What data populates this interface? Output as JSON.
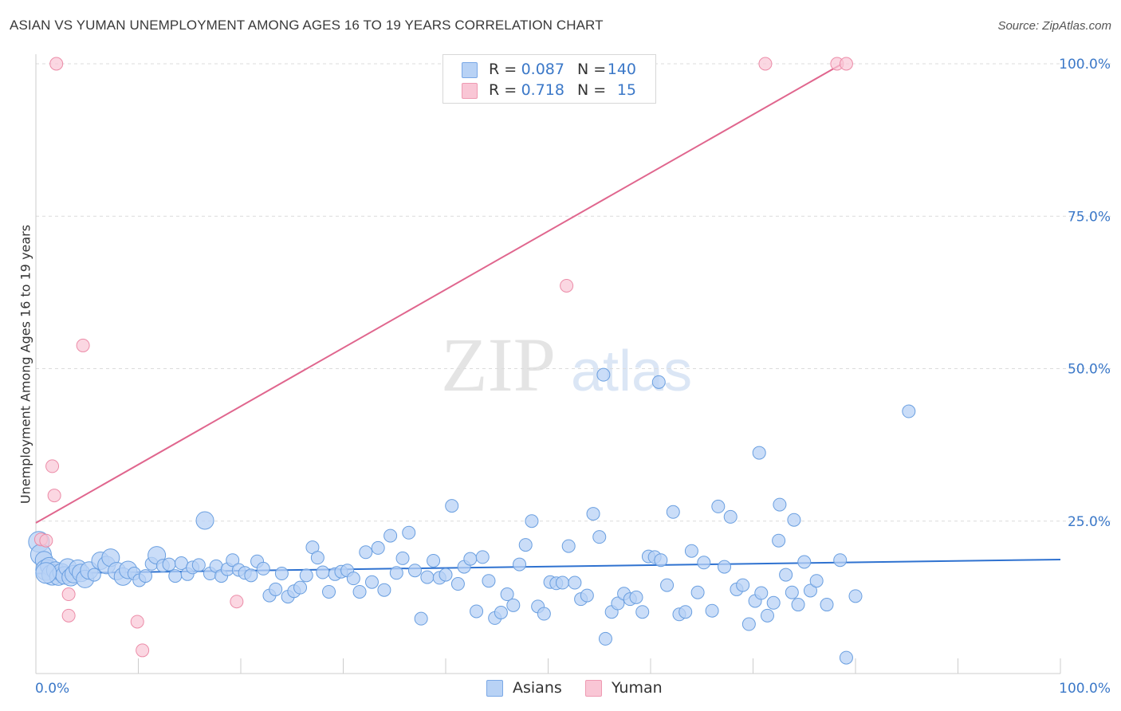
{
  "title": "ASIAN VS YUMAN UNEMPLOYMENT AMONG AGES 16 TO 19 YEARS CORRELATION CHART",
  "source": "Source: ZipAtlas.com",
  "watermark": {
    "zip": "ZIP",
    "atlas": "atlas"
  },
  "colors": {
    "blue_fill": "#b8d2f5",
    "blue_stroke": "#6a9fe0",
    "blue_line": "#2f72d0",
    "pink_fill": "#f9c6d5",
    "pink_stroke": "#ec8ca8",
    "pink_line": "#e0668e",
    "axis_text": "#3b78c8",
    "grid": "#dcdcdc"
  },
  "legend": {
    "r_label": "R =",
    "n_label": "N =",
    "rows": [
      {
        "series": "Asians",
        "r": "0.087",
        "n": "140",
        "color": "blue"
      },
      {
        "series": "Yuman",
        "r": "0.718",
        "n": "15",
        "color": "pink"
      }
    ]
  },
  "bottom_legend": [
    {
      "label": "Asians",
      "color": "blue"
    },
    {
      "label": "Yuman",
      "color": "pink"
    }
  ],
  "chart_data": {
    "type": "scatter",
    "title": "ASIAN VS YUMAN UNEMPLOYMENT AMONG AGES 16 TO 19 YEARS CORRELATION CHART",
    "xlabel": "",
    "ylabel": "Unemployment Among Ages 16 to 19 years",
    "xlim": [
      0,
      100
    ],
    "ylim": [
      0,
      100
    ],
    "x_tick_labels": [
      "0.0%",
      "100.0%"
    ],
    "y_ticks": [
      {
        "value": 25,
        "label": "25.0%"
      },
      {
        "value": 50,
        "label": "50.0%"
      },
      {
        "value": 75,
        "label": "75.0%"
      },
      {
        "value": 100,
        "label": "100.0%"
      }
    ],
    "grid": true,
    "legend_position": "top-center",
    "series": [
      {
        "name": "Asians",
        "color": "blue",
        "trend": {
          "x": [
            0,
            100
          ],
          "y": [
            16.4,
            18.7
          ]
        },
        "points": [
          [
            0.3,
            21.6,
            3
          ],
          [
            0.5,
            19.5,
            3
          ],
          [
            0.8,
            18.6,
            2
          ],
          [
            1.0,
            17.0,
            3
          ],
          [
            1.3,
            17.6,
            2
          ],
          [
            1.6,
            16.2,
            3
          ],
          [
            1.9,
            16.9,
            2
          ],
          [
            2.2,
            15.9,
            2
          ],
          [
            2.5,
            16.6,
            2
          ],
          [
            2.8,
            16.1,
            2
          ],
          [
            3.1,
            17.4,
            2
          ],
          [
            3.4,
            15.8,
            2
          ],
          [
            3.7,
            16.3,
            2
          ],
          [
            4.1,
            17.2,
            2
          ],
          [
            4.4,
            16.5,
            2
          ],
          [
            4.8,
            15.5,
            2
          ],
          [
            5.2,
            16.9,
            2
          ],
          [
            5.7,
            16.2,
            1
          ],
          [
            6.3,
            18.5,
            2
          ],
          [
            6.9,
            17.8,
            2
          ],
          [
            7.3,
            19.0,
            2
          ],
          [
            7.9,
            16.8,
            2
          ],
          [
            8.5,
            15.9,
            2
          ],
          [
            9.0,
            17.0,
            2
          ],
          [
            9.6,
            16.4,
            1
          ],
          [
            10.1,
            15.3,
            1
          ],
          [
            10.7,
            16.0,
            1
          ],
          [
            11.3,
            18.0,
            1
          ],
          [
            11.8,
            19.4,
            2
          ],
          [
            12.4,
            17.7,
            1
          ],
          [
            13.0,
            17.9,
            1
          ],
          [
            13.6,
            16.0,
            1
          ],
          [
            14.2,
            18.1,
            1
          ],
          [
            14.8,
            16.3,
            1
          ],
          [
            15.3,
            17.4,
            1
          ],
          [
            15.9,
            17.8,
            1
          ],
          [
            16.5,
            25.1,
            2
          ],
          [
            17.0,
            16.4,
            1
          ],
          [
            17.6,
            17.6,
            1
          ],
          [
            18.1,
            16.0,
            1
          ],
          [
            18.7,
            17.1,
            1
          ],
          [
            19.2,
            18.6,
            1
          ],
          [
            19.8,
            17.0,
            1
          ],
          [
            20.4,
            16.5,
            1
          ],
          [
            21.0,
            16.1,
            1
          ],
          [
            21.6,
            18.4,
            1
          ],
          [
            22.2,
            17.2,
            1
          ],
          [
            22.8,
            12.8,
            1
          ],
          [
            23.4,
            13.8,
            1
          ],
          [
            24.0,
            16.4,
            1
          ],
          [
            24.6,
            12.6,
            1
          ],
          [
            25.2,
            13.5,
            1
          ],
          [
            25.8,
            14.1,
            1
          ],
          [
            26.4,
            16.1,
            1
          ],
          [
            27.0,
            20.7,
            1
          ],
          [
            27.5,
            19.0,
            1
          ],
          [
            28.0,
            16.6,
            1
          ],
          [
            28.6,
            13.4,
            1
          ],
          [
            29.2,
            16.3,
            1
          ],
          [
            29.8,
            16.7,
            1
          ],
          [
            30.4,
            16.9,
            1
          ],
          [
            31.0,
            15.6,
            1
          ],
          [
            31.6,
            13.4,
            1
          ],
          [
            32.2,
            19.9,
            1
          ],
          [
            32.8,
            15.0,
            1
          ],
          [
            33.4,
            20.6,
            1
          ],
          [
            34.0,
            13.7,
            1
          ],
          [
            34.6,
            22.6,
            1
          ],
          [
            35.2,
            16.5,
            1
          ],
          [
            35.8,
            18.9,
            1
          ],
          [
            36.4,
            23.1,
            1
          ],
          [
            37.0,
            16.9,
            1
          ],
          [
            37.6,
            9.0,
            1
          ],
          [
            38.2,
            15.8,
            1
          ],
          [
            38.8,
            18.5,
            1
          ],
          [
            39.4,
            15.7,
            1
          ],
          [
            40.0,
            16.2,
            1
          ],
          [
            40.6,
            27.5,
            1
          ],
          [
            41.2,
            14.7,
            1
          ],
          [
            41.8,
            17.5,
            1
          ],
          [
            42.4,
            18.8,
            1
          ],
          [
            43.0,
            10.2,
            1
          ],
          [
            43.6,
            19.1,
            1
          ],
          [
            44.2,
            15.2,
            1
          ],
          [
            44.8,
            9.1,
            1
          ],
          [
            45.4,
            10.0,
            1
          ],
          [
            46.0,
            13.0,
            1
          ],
          [
            46.6,
            11.2,
            1
          ],
          [
            47.2,
            17.9,
            1
          ],
          [
            47.8,
            21.1,
            1
          ],
          [
            48.4,
            25.0,
            1
          ],
          [
            49.0,
            11.0,
            1
          ],
          [
            49.6,
            9.8,
            1
          ],
          [
            50.2,
            15.0,
            1
          ],
          [
            50.8,
            14.8,
            1
          ],
          [
            51.4,
            14.9,
            1
          ],
          [
            52.0,
            20.9,
            1
          ],
          [
            52.6,
            14.9,
            1
          ],
          [
            53.2,
            12.2,
            1
          ],
          [
            53.8,
            12.8,
            1
          ],
          [
            54.4,
            26.2,
            1
          ],
          [
            55.0,
            22.4,
            1
          ],
          [
            55.6,
            5.7,
            1
          ],
          [
            56.2,
            10.1,
            1
          ],
          [
            56.8,
            11.5,
            1
          ],
          [
            57.4,
            13.1,
            1
          ],
          [
            58.0,
            12.2,
            1
          ],
          [
            58.6,
            12.5,
            1
          ],
          [
            59.2,
            10.1,
            1
          ],
          [
            59.8,
            19.2,
            1
          ],
          [
            60.4,
            19.1,
            1
          ],
          [
            61.0,
            18.6,
            1
          ],
          [
            61.6,
            14.5,
            1
          ],
          [
            62.2,
            26.5,
            1
          ],
          [
            62.8,
            9.7,
            1
          ],
          [
            63.4,
            10.1,
            1
          ],
          [
            64.0,
            20.1,
            1
          ],
          [
            64.6,
            13.3,
            1
          ],
          [
            65.2,
            18.2,
            1
          ],
          [
            66.0,
            10.3,
            1
          ],
          [
            66.6,
            27.4,
            1
          ],
          [
            67.2,
            17.5,
            1
          ],
          [
            67.8,
            25.7,
            1
          ],
          [
            68.4,
            13.8,
            1
          ],
          [
            69.0,
            14.5,
            1
          ],
          [
            69.6,
            8.1,
            1
          ],
          [
            70.2,
            11.9,
            1
          ],
          [
            70.8,
            13.2,
            1
          ],
          [
            71.4,
            9.5,
            1
          ],
          [
            72.0,
            11.6,
            1
          ],
          [
            72.6,
            27.7,
            1
          ],
          [
            73.2,
            16.2,
            1
          ],
          [
            73.8,
            13.3,
            1
          ],
          [
            74.4,
            11.3,
            1
          ],
          [
            75.0,
            18.3,
            1
          ],
          [
            75.6,
            13.6,
            1
          ],
          [
            76.2,
            15.2,
            1
          ],
          [
            78.5,
            18.6,
            1
          ],
          [
            79.1,
            2.6,
            1
          ],
          [
            80.0,
            12.7,
            1
          ]
        ]
      },
      {
        "name": "Yuman",
        "color": "pink",
        "trend": {
          "x": [
            0,
            78.7
          ],
          "y": [
            24.7,
            100
          ]
        },
        "points": [
          [
            0.5,
            22.0
          ],
          [
            1.0,
            21.8
          ],
          [
            1.6,
            34.0
          ],
          [
            1.8,
            29.2
          ],
          [
            2.0,
            100.0
          ],
          [
            3.2,
            13.0
          ],
          [
            3.2,
            9.5
          ],
          [
            4.6,
            53.8
          ],
          [
            9.9,
            8.5
          ],
          [
            10.4,
            3.8
          ],
          [
            19.6,
            11.8
          ],
          [
            51.8,
            63.6
          ],
          [
            71.2,
            100.0
          ],
          [
            78.2,
            100.0
          ],
          [
            79.1,
            100.0
          ]
        ]
      }
    ],
    "extra_asian_points": [
      [
        55.4,
        49.0,
        1
      ],
      [
        60.8,
        47.8,
        1
      ],
      [
        85.2,
        43.0,
        1
      ],
      [
        70.6,
        36.2,
        1
      ],
      [
        74.0,
        25.2,
        1
      ],
      [
        72.5,
        21.8,
        1
      ],
      [
        77.2,
        11.3,
        1
      ],
      [
        1.0,
        16.5,
        3
      ]
    ]
  }
}
